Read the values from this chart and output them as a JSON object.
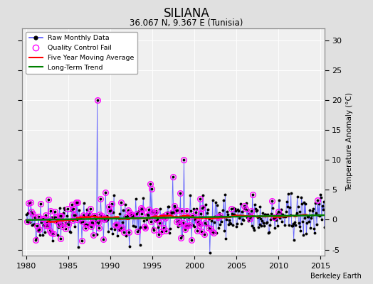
{
  "title": "SILIANA",
  "subtitle": "36.067 N, 9.367 E (Tunisia)",
  "ylabel": "Temperature Anomaly (°C)",
  "xlim": [
    1979.5,
    2015.5
  ],
  "ylim": [
    -6,
    32
  ],
  "yticks": [
    -5,
    0,
    5,
    10,
    15,
    20,
    25,
    30
  ],
  "xticks": [
    1980,
    1985,
    1990,
    1995,
    2000,
    2005,
    2010,
    2015
  ],
  "background_color": "#e0e0e0",
  "plot_bg_color": "#f0f0f0",
  "watermark": "Berkeley Earth",
  "raw_color": "#5555ff",
  "qc_color": "magenta",
  "moving_avg_color": "red",
  "trend_color": "green",
  "seed": 42
}
